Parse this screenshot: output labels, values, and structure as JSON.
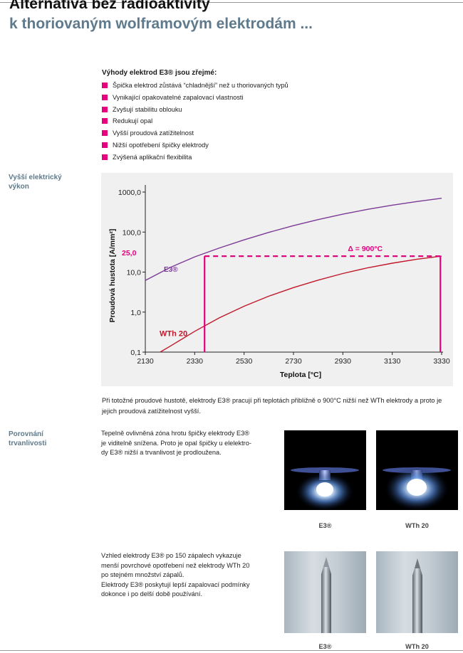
{
  "header": {
    "title_line1": "Alternativa bez radioaktivity",
    "title_line2": "k thoriovaným wolframovým elektrodám ..."
  },
  "advantages": {
    "heading": "Výhody elektrod E3® jsou zřejmé:",
    "items": [
      "Špička elektrod zůstává “chladnější” než u thoriovaných typů",
      "Vynikající opakovatelné zapalovací vlastnosti",
      "Zvyšují stabilitu oblouku",
      "Redukují opal",
      "Vyšší proudová zatížitelnost",
      "Nižší opotřebení špičky elektrody",
      "Zvýšená aplikační flexibilita"
    ],
    "bullet_color": "#e5007e"
  },
  "sections": {
    "power_heading": "Vyšší elektrický\nvýkon",
    "life_heading": "Porovnání\ntrvanlivosti"
  },
  "chart_data": {
    "type": "line",
    "xlabel": "Teplota [°C]",
    "ylabel": "Proudová hustota [A/mm²]",
    "x_ticks": [
      2130,
      2330,
      2530,
      2730,
      2930,
      3130,
      3330
    ],
    "y_ticks": [
      0.1,
      1,
      10,
      100,
      1000
    ],
    "y_tick_labels": [
      "0,1",
      "1,0",
      "10,0",
      "100,0",
      "1000,0"
    ],
    "xlim": [
      2130,
      3330
    ],
    "ylim": [
      0.1,
      1000
    ],
    "y_scale": "log",
    "series": [
      {
        "name": "E3®",
        "color": "#7b3a96",
        "x": [
          2130,
          2230,
          2330,
          2430,
          2530,
          2630,
          2730,
          2830,
          2930,
          3030,
          3130,
          3230,
          3330
        ],
        "y": [
          6.2,
          13,
          24,
          40,
          64,
          98,
          145,
          205,
          280,
          370,
          470,
          580,
          700
        ]
      },
      {
        "name": "WTh 20",
        "color": "#c0182a",
        "x": [
          2190,
          2230,
          2330,
          2430,
          2530,
          2630,
          2730,
          2830,
          2930,
          3030,
          3130,
          3230,
          3330
        ],
        "y": [
          0.1,
          0.14,
          0.33,
          0.72,
          1.4,
          2.5,
          4.1,
          6.3,
          9.2,
          12.8,
          16.7,
          21,
          25
        ]
      }
    ],
    "annotations": {
      "level_value": 25,
      "level_label": "25,0",
      "delta_label": "Δ = 900°C",
      "e3_marker_x": 2370,
      "wth_marker_x": 3325,
      "highlight_color": "#e5007e"
    },
    "grid": false,
    "legend": "inline labels"
  },
  "caption": "Při totožné proudové hustotě, elektrody E3® pracují při teplotách přibližně o 900°C nižší než WTh elektrody a proto je jejich proudová zatížitelnost vyšší.",
  "life": {
    "text1": "Tepelně ovlivněná zóna hrotu špičky elektrody E3®\nje viditelně snížena. Proto je opal špičky u elelektro-\ndy E3® nižší a trvanlivost je prodloužena.",
    "text2": "Vzhled elektrody E3® po 150 zápalech vykazuje\nmenší povrchové opotřebení než elektrody WTh 20\npo stejném množství zápalů.\nElektrody E3® poskytují lepší zapalovací podmínky\ndokonce i po delší době používání.",
    "label_e3": "E3®",
    "label_wth": "WTh 20"
  }
}
